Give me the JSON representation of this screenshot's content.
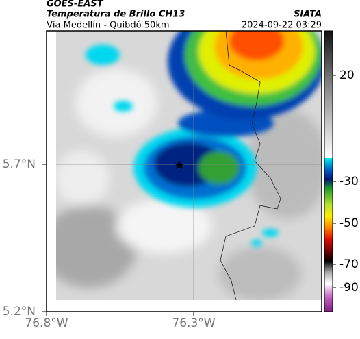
{
  "header": {
    "source": "GOES-EAST",
    "title": "Temperatura de Brillo CH13",
    "subtitle": "Vía Medellín - Quibdó 50km",
    "agency": "SIATA",
    "timestamp": "2024-09-22 03:29"
  },
  "map": {
    "lat_labels": [
      "5.7°N",
      "5.2°N"
    ],
    "lon_labels": [
      "76.8°W",
      "76.3°W"
    ]
  },
  "colorbar": {
    "ticks": [
      20,
      -30,
      -50,
      -70,
      -90
    ]
  }
}
